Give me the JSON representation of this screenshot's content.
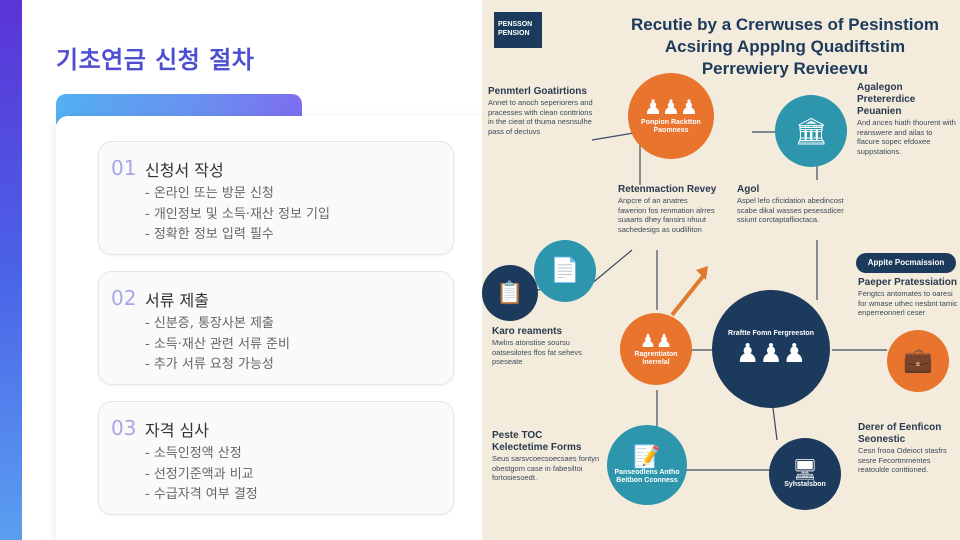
{
  "slide": {
    "title": "기초연금 신청 절차",
    "steps": [
      {
        "num": "01",
        "title": "신청서 작성",
        "items": [
          "- 온라인 또는 방문 신청",
          "- 개인정보 및 소득·재산 정보 기입",
          "- 정확한 정보 입력 필수"
        ]
      },
      {
        "num": "02",
        "title": "서류 제출",
        "items": [
          "- 신분증, 통장사본 제출",
          "- 소득·재산 관련 서류 준비",
          "- 추가 서류 요청 가능성"
        ]
      },
      {
        "num": "03",
        "title": "자격 심사",
        "items": [
          "- 소득인정액 산정",
          "- 선정기준액과 비교",
          "- 수급자격 여부 결정"
        ]
      }
    ]
  },
  "infographic": {
    "logo": "PENSSON PENSION",
    "title": "Recutie by a Crerwuses of Pesinstiom Acsiring Appplng Quadiftstim Perrewiery Revieevu",
    "blocks": [
      {
        "head": "Penmterl Goatirtions",
        "body": "Annet to anoch seperiorers and pracesses with clean conttrions in the cieat of thuma nesnsulhe pass of dectuvs"
      },
      {
        "head": "Agalegon Pretererdice Peuanien",
        "body": "And ances hiath thourent with reanswere and ailas to flacure sopec efdoxee suppstations."
      },
      {
        "head": "Retenmaction Revey",
        "body": "Anpcre of an anatres fawerion fos renmation alrres suaarts dhey fansirs nhuut sachedesigs as oudlifiton"
      },
      {
        "head": "Agol",
        "body": "Aspel lefo cficidation abedincost scabe dikal wasses pesessdicer ssiunt corctaptaflioctaca."
      },
      {
        "head": "Karo reaments",
        "body": "Mwlns atonstise soursu oatsesilotes ffos fat sehevs pseseate"
      },
      {
        "head": "Paeper Pratessiation",
        "body": "Fengtcs antomates to oaresi for wmase uthec nesbnt tamic enperreonnerl ceser"
      },
      {
        "head": "Peste TOC Kelectetime Forms",
        "body": "Seus sarsvcoecsoecsaes fontyn obestgom case in fabesiltoi fortosiesoedt."
      },
      {
        "head": "Derer of Eenficon Seonestic",
        "body": "Cesn frooa Odeioct stasfrs sesre Fecortmmentes reatoulde conttioned."
      }
    ],
    "badge": "Appite Pocmaission",
    "nodes": [
      {
        "label": "Ponpion Racktton Paomness"
      },
      {
        "label": ""
      },
      {
        "label": ""
      },
      {
        "label": "Ragrentiaton Inerrelal"
      },
      {
        "label": "Rraftte Fomn Fergreeston"
      },
      {
        "label": ""
      },
      {
        "label": "Panseodlens Antho Beitbon Cconness"
      },
      {
        "label": "Syhstalsbon"
      }
    ]
  }
}
